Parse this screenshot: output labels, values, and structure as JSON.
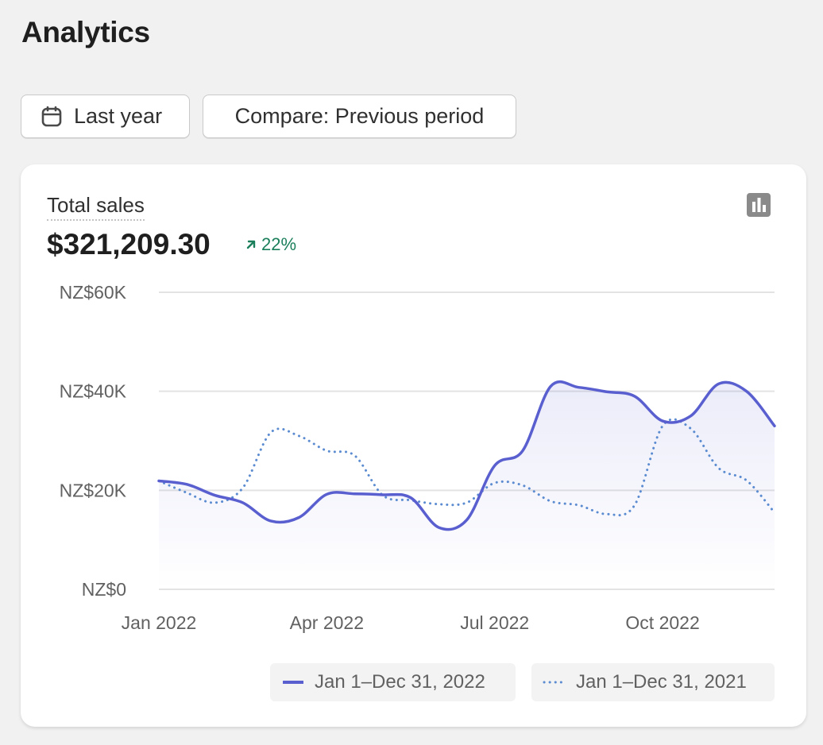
{
  "page": {
    "title": "Analytics"
  },
  "toolbar": {
    "date_label": "Last year",
    "compare_label": "Compare: Previous period"
  },
  "metric": {
    "label": "Total sales",
    "value": "$321,209.30",
    "change": "22%",
    "change_color": "#1a7f5a"
  },
  "icons": {
    "date_button": "calendar-icon",
    "change": "arrow-up-right-icon",
    "chart_toggle": "bar-chart-icon"
  },
  "colors": {
    "current_series": "#5a5fd0",
    "previous_series": "#5b8bd0",
    "grid": "#e3e3e3"
  },
  "chart_data": {
    "type": "line",
    "y_ticks": [
      "NZ$60K",
      "NZ$40K",
      "NZ$20K",
      "NZ$0"
    ],
    "y_tick_values": [
      60000,
      40000,
      20000,
      0
    ],
    "ylim": [
      0,
      60000
    ],
    "x_ticks": [
      "Jan 2022",
      "Apr 2022",
      "Jul 2022",
      "Oct 2022"
    ],
    "x_tick_positions": [
      0,
      3,
      6,
      9
    ],
    "xlim": [
      0,
      11
    ],
    "grid": true,
    "series": [
      {
        "name": "Jan 1–Dec 31, 2022",
        "style": "solid",
        "x": [
          0,
          0.5,
          1,
          1.5,
          2,
          2.5,
          3,
          3.5,
          4,
          4.5,
          5,
          5.5,
          6,
          6.5,
          7,
          7.5,
          8,
          8.5,
          9,
          9.5,
          10,
          10.5,
          11
        ],
        "values": [
          21900,
          21200,
          19000,
          17500,
          13800,
          14500,
          19200,
          19300,
          19100,
          18500,
          12500,
          14000,
          25000,
          28000,
          41000,
          40800,
          39900,
          39000,
          34000,
          35000,
          41500,
          40000,
          33000
        ]
      },
      {
        "name": "Jan 1–Dec 31, 2021",
        "style": "dotted",
        "x": [
          0,
          0.5,
          1,
          1.5,
          2,
          2.5,
          3,
          3.5,
          4,
          4.5,
          5,
          5.5,
          6,
          6.5,
          7,
          7.5,
          8,
          8.5,
          9,
          9.5,
          10,
          10.5,
          11
        ],
        "values": [
          21900,
          19500,
          17500,
          20500,
          31700,
          31000,
          28000,
          27000,
          19000,
          18000,
          17200,
          17500,
          21500,
          21000,
          17800,
          17000,
          15200,
          17000,
          33000,
          32500,
          24500,
          22000,
          15500
        ]
      }
    ]
  }
}
